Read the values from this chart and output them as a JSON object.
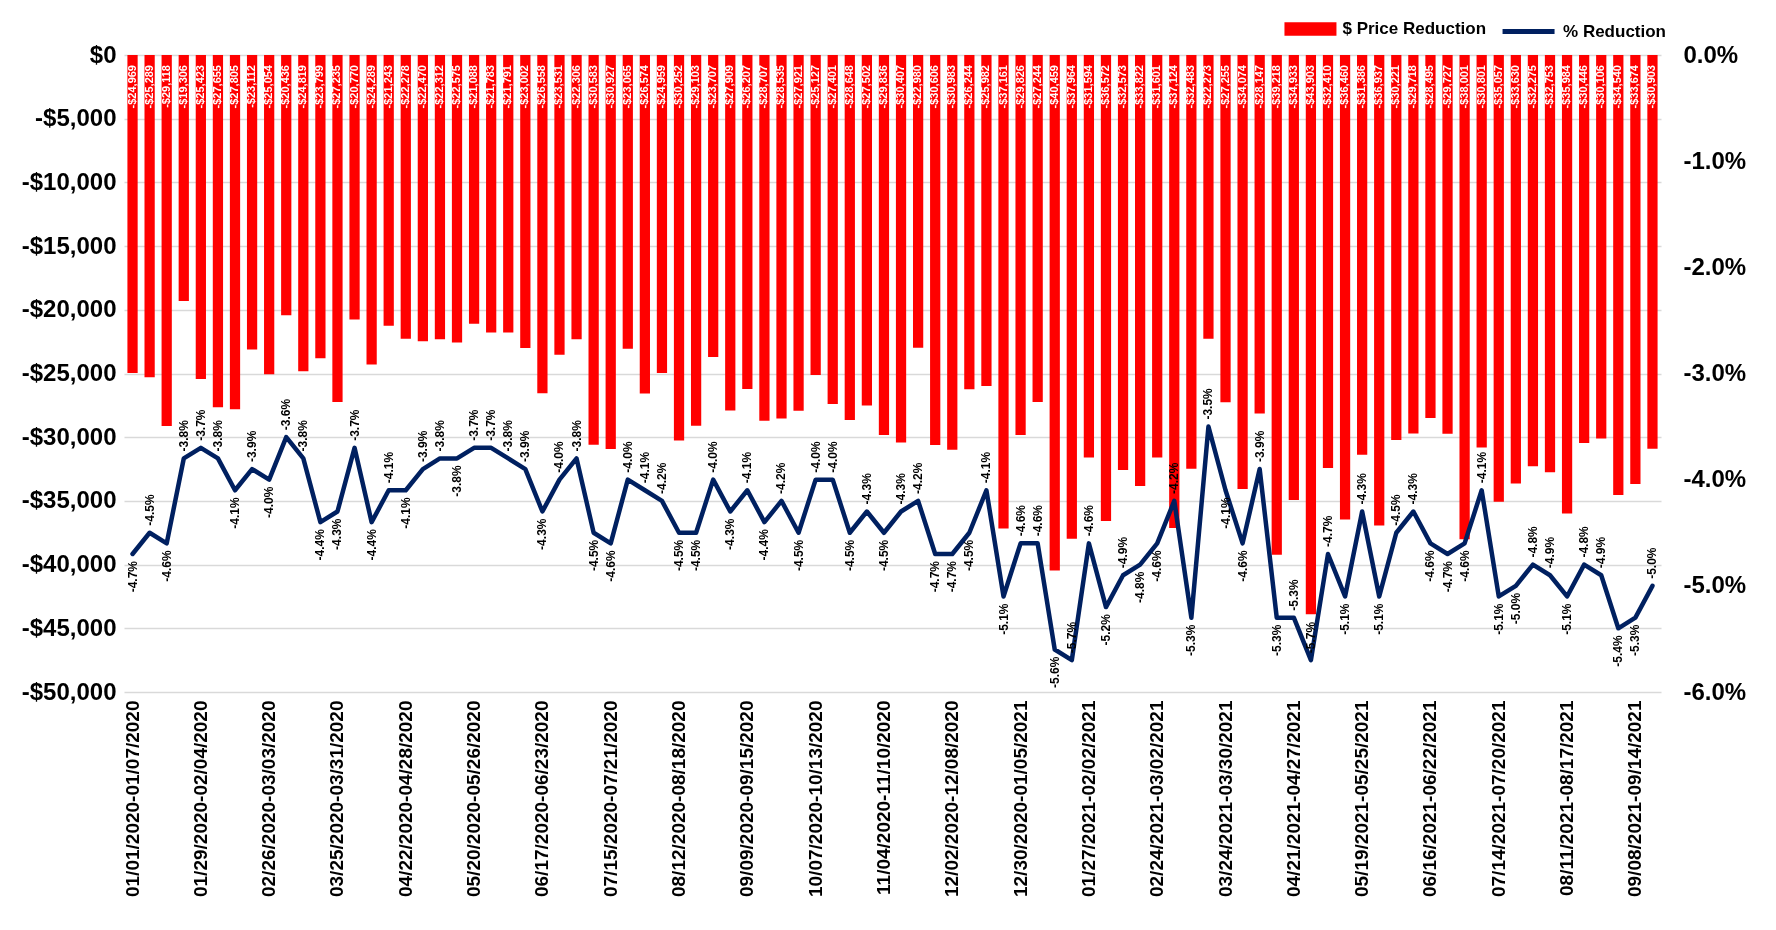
{
  "chart_data": {
    "type": "bar",
    "categories": [
      "01/01/2020-01/07/2020",
      null,
      null,
      null,
      "01/29/2020-02/04/2020",
      null,
      null,
      null,
      "02/26/2020-03/03/2020",
      null,
      null,
      null,
      "03/25/2020-03/31/2020",
      null,
      null,
      null,
      "04/22/2020-04/28/2020",
      null,
      null,
      null,
      "05/20/2020-05/26/2020",
      null,
      null,
      null,
      "06/17/2020-06/23/2020",
      null,
      null,
      null,
      "07/15/2020-07/21/2020",
      null,
      null,
      null,
      "08/12/2020-08/18/2020",
      null,
      null,
      null,
      "09/09/2020-09/15/2020",
      null,
      null,
      null,
      "10/07/2020-10/13/2020",
      null,
      null,
      null,
      "11/04/2020-11/10/2020",
      null,
      null,
      null,
      "12/02/2020-12/08/2020",
      null,
      null,
      null,
      "12/30/2020-01/05/2021",
      null,
      null,
      null,
      "01/27/2021-02/02/2021",
      null,
      null,
      null,
      "02/24/2021-03/02/2021",
      null,
      null,
      null,
      "03/24/2021-03/30/2021",
      null,
      null,
      null,
      "04/21/2021-04/27/2021",
      null,
      null,
      null,
      "05/19/2021-05/25/2021",
      null,
      null,
      null,
      "06/16/2021-06/22/2021",
      null,
      null,
      null,
      "07/14/2021-07/20/2021",
      null,
      null,
      null,
      "08/11/2021-08/17/2021",
      null,
      null,
      null,
      "09/08/2021-09/14/2021",
      null
    ],
    "series": [
      {
        "name": "$ Price Reduction",
        "color": "#ff0000",
        "values": [
          -24969,
          -25289,
          -29118,
          -19306,
          -25423,
          -27655,
          -27805,
          -23112,
          -25054,
          -20436,
          -24819,
          -23799,
          -27235,
          -20770,
          -24289,
          -21243,
          -22278,
          -22470,
          -22312,
          -22575,
          -21088,
          -21783,
          -21791,
          -23002,
          -26558,
          -23531,
          -22306,
          -30583,
          -30927,
          -23065,
          -26574,
          -24959,
          -30252,
          -29103,
          -23707,
          -27909,
          -26207,
          -28707,
          -28535,
          -27921,
          -25127,
          -27401,
          -28648,
          -27502,
          -29836,
          -30407,
          -22980,
          -30606,
          -30983,
          -26244,
          -25982,
          -37161,
          -29826,
          -27244,
          -40459,
          -37964,
          -31594,
          -36572,
          -32573,
          -33822,
          -31601,
          -37124,
          -32483,
          -22273,
          -27255,
          -34074,
          -28147,
          -39218,
          -34933,
          -43903,
          -32410,
          -36460,
          -31386,
          -36937,
          -30221,
          -29718,
          -28495,
          -29727,
          -38001,
          -30801,
          -35057,
          -33630,
          -32275,
          -32753,
          -35984,
          -30446,
          -30106,
          -34540,
          -33674,
          -30903
        ],
        "value_labels": [
          "-$24,969",
          "-$25,289",
          "-$29,118",
          "-$19,306",
          "-$25,423",
          "-$27,655",
          "-$27,805",
          "-$23,112",
          "-$25,054",
          "-$20,436",
          "-$24,819",
          "-$23,799",
          "-$27,235",
          "-$20,770",
          "-$24,289",
          "-$21,243",
          "-$22,278",
          "-$22,470",
          "-$22,312",
          "-$22,575",
          "-$21,088",
          "-$21,783",
          "-$21,791",
          "-$23,002",
          "-$26,558",
          "-$23,531",
          "-$22,306",
          "-$30,583",
          "-$30,927",
          "-$23,065",
          "-$26,574",
          "-$24,959",
          "-$30,252",
          "-$29,103",
          "-$23,707",
          "-$27,909",
          "-$26,207",
          "-$28,707",
          "-$28,535",
          "-$27,921",
          "-$25,127",
          "-$27,401",
          "-$28,648",
          "-$27,502",
          "-$29,836",
          "-$30,407",
          "-$22,980",
          "-$30,606",
          "-$30,983",
          "-$26,244",
          "-$25,982",
          "-$37,161",
          "-$29,826",
          "-$27,244",
          "-$40,459",
          "-$37,964",
          "-$31,594",
          "-$36,572",
          "-$32,573",
          "-$33,822",
          "-$31,601",
          "-$37,124",
          "-$32,483",
          "-$22,273",
          "-$27,255",
          "-$34,074",
          "-$28,147",
          "-$39,218",
          "-$34,933",
          "-$43,903",
          "-$32,410",
          "-$36,460",
          "-$31,386",
          "-$36,937",
          "-$30,221",
          "-$29,718",
          "-$28,495",
          "-$29,727",
          "-$38,001",
          "-$30,801",
          "-$35,057",
          "-$33,630",
          "-$32,275",
          "-$32,753",
          "-$35,984",
          "-$30,446",
          "-$30,106",
          "-$34,540",
          "-$33,674",
          "-$30,903"
        ]
      },
      {
        "name": "% Reduction",
        "type": "line",
        "axis": "y2",
        "color": "#002060",
        "values": [
          -4.7,
          -4.5,
          -4.6,
          -3.8,
          -3.7,
          -3.8,
          -4.1,
          -3.9,
          -4.0,
          -3.6,
          -3.8,
          -4.4,
          -4.3,
          -3.7,
          -4.4,
          -4.1,
          -4.1,
          -3.9,
          -3.8,
          -3.8,
          -3.7,
          -3.7,
          -3.8,
          -3.9,
          -4.3,
          -4.0,
          -3.8,
          -4.5,
          -4.6,
          -4.0,
          -4.1,
          -4.2,
          -4.5,
          -4.5,
          -4.0,
          -4.3,
          -4.1,
          -4.4,
          -4.2,
          -4.5,
          -4.0,
          -4.0,
          -4.5,
          -4.3,
          -4.5,
          -4.3,
          -4.2,
          -4.7,
          -4.7,
          -4.5,
          -4.1,
          -5.1,
          -4.6,
          -4.6,
          -5.6,
          -5.7,
          -4.6,
          -5.2,
          -4.9,
          -4.8,
          -4.6,
          -4.2,
          -5.3,
          -3.5,
          -4.1,
          -4.6,
          -3.9,
          -5.3,
          -5.3,
          -5.7,
          -4.7,
          -5.1,
          -4.3,
          -5.1,
          -4.5,
          -4.3,
          -4.6,
          -4.7,
          -4.6,
          -4.1,
          -5.1,
          -5.0,
          -4.8,
          -4.9,
          -5.1,
          -4.8,
          -4.9,
          -5.4,
          -5.3,
          -5.0
        ],
        "value_labels": [
          "-4.7%",
          "-4.5%",
          "-4.6%",
          "-3.8%",
          "-3.7%",
          "-3.8%",
          "-4.1%",
          "-3.9%",
          "-4.0%",
          "-3.6%",
          "-3.8%",
          "-4.4%",
          "-4.3%",
          "-3.7%",
          "-4.4%",
          "-4.1%",
          "-4.1%",
          "-3.9%",
          "-3.8%",
          "-3.8%",
          "-3.7%",
          "-3.7%",
          "-3.8%",
          "-3.9%",
          "-4.3%",
          "-4.0%",
          "-3.8%",
          "-4.5%",
          "-4.6%",
          "-4.0%",
          "-4.1%",
          "-4.2%",
          "-4.5%",
          "-4.5%",
          "-4.0%",
          "-4.3%",
          "-4.1%",
          "-4.4%",
          "-4.2%",
          "-4.5%",
          "-4.0%",
          "-4.0%",
          "-4.5%",
          "-4.3%",
          "-4.5%",
          "-4.3%",
          "-4.2%",
          "-4.7%",
          "-4.7%",
          "-4.5%",
          "-4.1%",
          "-5.1%",
          "-4.6%",
          "-4.6%",
          "-5.6%",
          "-5.7%",
          "-4.6%",
          "-5.2%",
          "-4.9%",
          "-4.8%",
          "-4.6%",
          "-4.2%",
          "-5.3%",
          "-3.5%",
          "-4.1%",
          "-4.6%",
          "-3.9%",
          "-5.3%",
          "-5.3%",
          "-5.7%",
          "-4.7%",
          "-5.1%",
          "-4.3%",
          "-5.1%",
          "-4.5%",
          "-4.3%",
          "-4.6%",
          "-4.7%",
          "-4.6%",
          "-4.1%",
          "-5.1%",
          "-5.0%",
          "-4.8%",
          "-4.9%",
          "-5.1%",
          "-4.8%",
          "-4.9%",
          "-5.4%",
          "-5.3%",
          "-5.0%"
        ]
      }
    ],
    "ylim": [
      -50000,
      0
    ],
    "yticks": [
      {
        "value": -50000,
        "label": "-$50,000"
      },
      {
        "value": -45000,
        "label": "-$45,000"
      },
      {
        "value": -40000,
        "label": "-$40,000"
      },
      {
        "value": -35000,
        "label": "-$35,000"
      },
      {
        "value": -30000,
        "label": "-$30,000"
      },
      {
        "value": -25000,
        "label": "-$25,000"
      },
      {
        "value": -20000,
        "label": "-$20,000"
      },
      {
        "value": -15000,
        "label": "-$15,000"
      },
      {
        "value": -10000,
        "label": "-$10,000"
      },
      {
        "value": -5000,
        "label": "-$5,000"
      },
      {
        "value": 0,
        "label": "$0"
      }
    ],
    "y2lim": [
      -6,
      0
    ],
    "y2ticks": [
      {
        "value": -6,
        "label": "-6.0%"
      },
      {
        "value": -5,
        "label": "-5.0%"
      },
      {
        "value": -4,
        "label": "-4.0%"
      },
      {
        "value": -3,
        "label": "-3.0%"
      },
      {
        "value": -2,
        "label": "-2.0%"
      },
      {
        "value": -1,
        "label": "-1.0%"
      },
      {
        "value": 0,
        "label": "0.0%"
      }
    ],
    "grid": "y",
    "legend": "top right"
  }
}
